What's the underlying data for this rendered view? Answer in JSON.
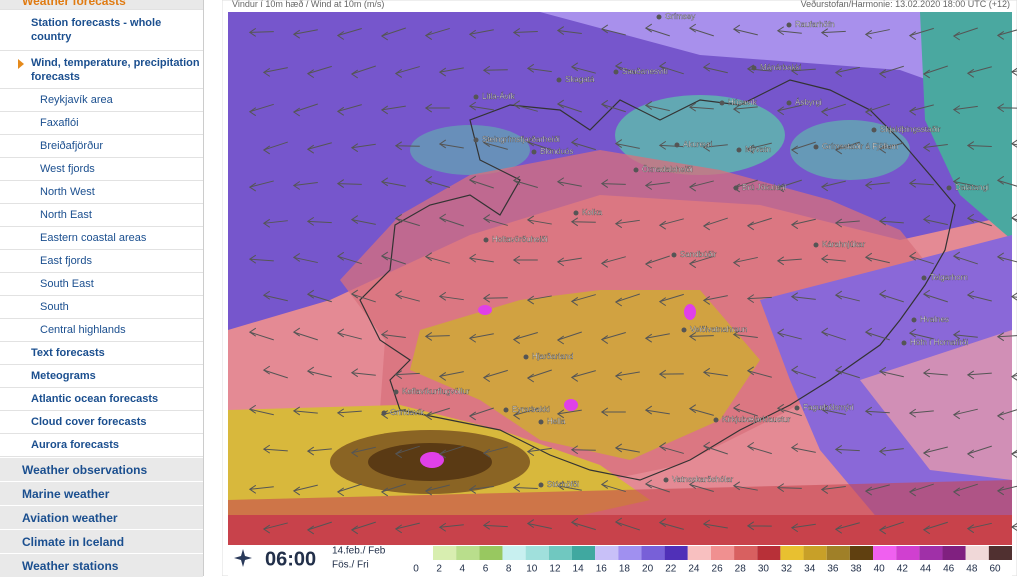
{
  "sidebar": {
    "current": "Weather forecasts",
    "forecast_links": [
      "Station forecasts - whole country",
      "Wind, temperature, precipitation forecasts"
    ],
    "regions": [
      "Reykjavík area",
      "Faxaflói",
      "Breiðafjörður",
      "West fjords",
      "North West",
      "North East",
      "Eastern coastal areas",
      "East fjords",
      "South East",
      "South",
      "Central highlands"
    ],
    "more_links": [
      "Text forecasts",
      "Meteograms",
      "Atlantic ocean forecasts",
      "Cloud cover forecasts",
      "Aurora forecasts"
    ],
    "sections": [
      "Weather observations",
      "Marine weather",
      "Aviation weather",
      "Climate in Iceland",
      "Weather stations"
    ]
  },
  "map": {
    "header_left": "Vindur í 10m hæð / Wind at 10m (m/s)",
    "header_right": "Veðurstofan/Harmonie: 13.02.2020 18:00 UTC (+12)",
    "places": [
      "Grímsey",
      "Raufarhöfn",
      "Skagatá",
      "Sauðanesviti",
      "Mánárbakki",
      "Litla-Ávík",
      "Húsavík",
      "Ásbyrgi",
      "Steingrímsfjarðarheiði",
      "Blönduós",
      "Akureyri",
      "Mývatn",
      "Grímsstaðir á Fjöllum",
      "Skjaldþingsstaðir",
      "Öxnadalsheiði",
      "Brú Jökuldal",
      "Dalatangi",
      "Kolka",
      "Holtavörðuheiði",
      "Kárahnjúkar",
      "Sandbúðir",
      "Teigarhorn",
      "Veiðivatnahraun",
      "Hvalnes",
      "Höfn í Hornafirði",
      "Hjarðarland",
      "Keflavíkurflugvöllur",
      "Grindavík",
      "Eyrarbakki",
      "Hella",
      "Kirkjubæjarklaustur",
      "Fagurhólsmýri",
      "Vatnsskarðshólar",
      "Stórhöfði"
    ],
    "time": "06:00",
    "date_line1": "14.feb./ Feb",
    "date_line2": "Fös./ Fri",
    "legend": {
      "labels": [
        "0",
        "2",
        "4",
        "6",
        "8",
        "10",
        "12",
        "14",
        "16",
        "18",
        "20",
        "22",
        "24",
        "26",
        "28",
        "30",
        "32",
        "34",
        "36",
        "38",
        "40",
        "42",
        "44",
        "46",
        "48",
        "60"
      ],
      "colors": [
        "#d8eeb0",
        "#b9de8c",
        "#98c860",
        "#c8f0f0",
        "#a0e0dc",
        "#70c8c0",
        "#40a8a0",
        "#c8c0f8",
        "#a090f0",
        "#7860d8",
        "#5030b8",
        "#f8c0c0",
        "#f09090",
        "#d86060",
        "#b83038",
        "#e8c030",
        "#c8a028",
        "#a08028",
        "#604010",
        "#f060f0",
        "#d040d0",
        "#a030a8",
        "#802080",
        "#f0d8d8",
        "#503030"
      ]
    }
  }
}
